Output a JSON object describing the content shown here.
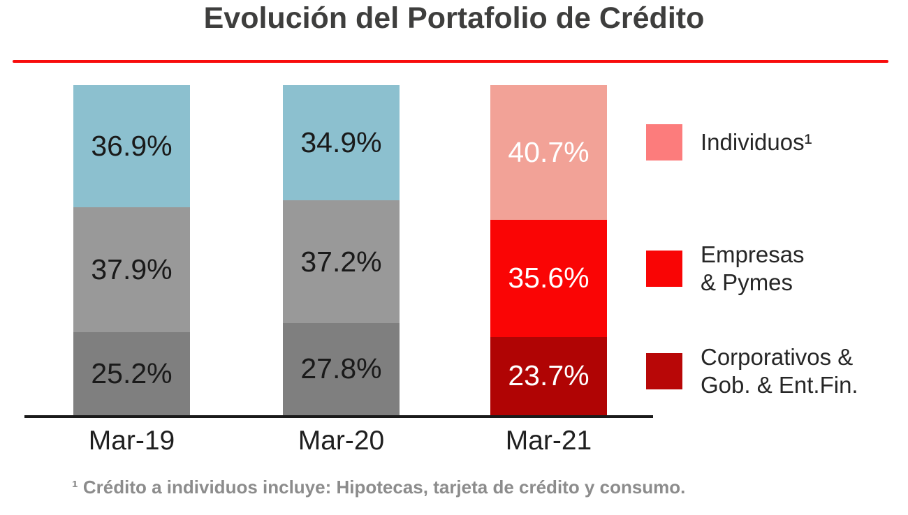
{
  "title": "Evolución del Portafolio de Crédito",
  "footnote": "¹ Crédito a individuos incluye: Hipotecas, tarjeta de crédito y consumo.",
  "accent": {
    "rule_color": "#f80d0d",
    "axis_color": "#1a1a1a"
  },
  "chart_data": {
    "type": "bar",
    "stacked": true,
    "title": "Evolución del Portafolio de Crédito",
    "categories": [
      "Mar-19",
      "Mar-20",
      "Mar-21"
    ],
    "series": [
      {
        "name": "Individuos¹",
        "values": [
          36.9,
          34.9,
          40.7
        ]
      },
      {
        "name": "Empresas & Pymes",
        "values": [
          37.9,
          37.2,
          35.6
        ]
      },
      {
        "name": "Corporativos & Gob. & Ent.Fin.",
        "values": [
          25.2,
          27.8,
          23.7
        ]
      }
    ],
    "value_suffix": "%",
    "ylim": [
      0,
      100
    ],
    "grid": false,
    "legend_position": "right",
    "highlight_category": "Mar-21",
    "bar_colors": {
      "muted": [
        "#8cc0cf",
        "#999999",
        "#7f7f7f"
      ],
      "highlight": [
        "#f2a297",
        "#fa0505",
        "#b00404"
      ],
      "muted_label": "#1a1a1a",
      "highlight_label": "#ffffff"
    }
  },
  "legend": {
    "items": [
      {
        "label": "Individuos¹",
        "color": "#fc7c7c"
      },
      {
        "label": "Empresas\n& Pymes",
        "color": "#f90505"
      },
      {
        "label": "Corporativos &\nGob. & Ent.Fin.",
        "color": "#b80707"
      }
    ]
  }
}
